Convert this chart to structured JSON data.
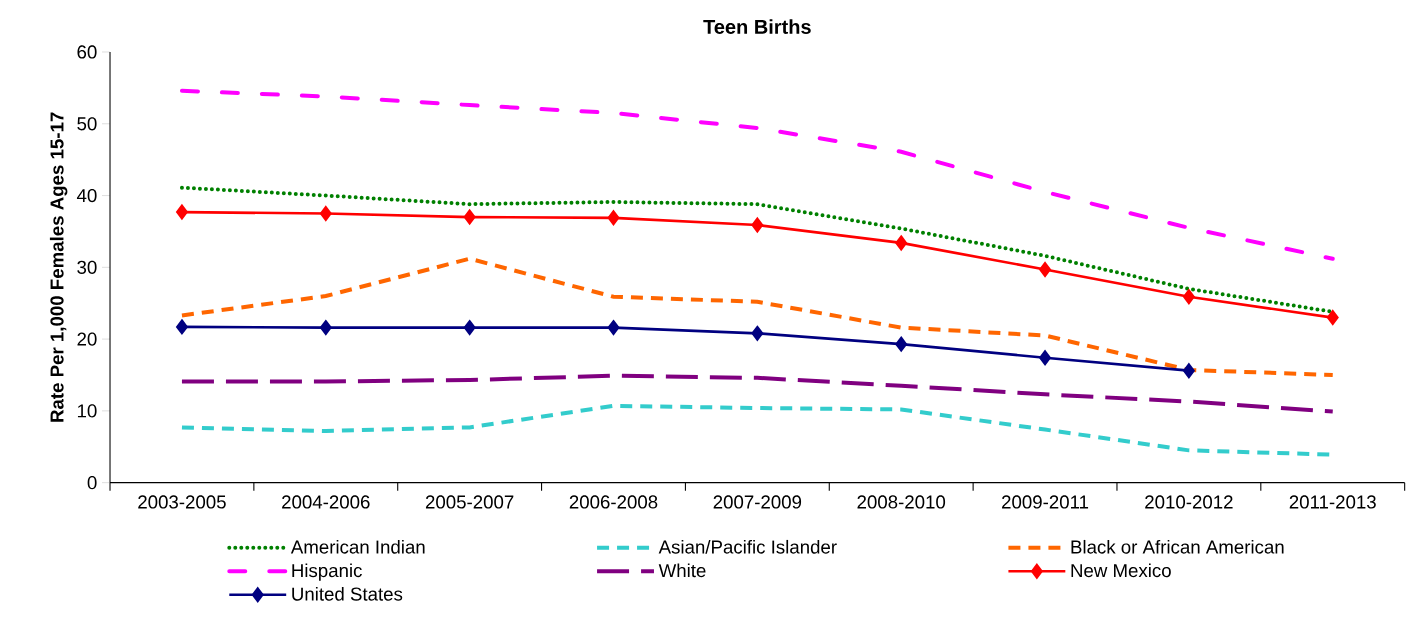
{
  "chart_data": {
    "type": "line",
    "title": "Teen Births",
    "ylabel": "Rate Per 1,000 Females Ages 15-17",
    "categories": [
      "2003-2005",
      "2004-2006",
      "2005-2007",
      "2006-2008",
      "2007-2009",
      "2008-2010",
      "2009-2011",
      "2010-2012",
      "2011-2013"
    ],
    "ylim": [
      0,
      60
    ],
    "yticks": [
      0,
      10,
      20,
      30,
      40,
      50,
      60
    ],
    "grid": false,
    "legend": "bottom",
    "series": [
      {
        "name": "American Indian",
        "color": "#008000",
        "line_style": "dotted",
        "marker": "none",
        "values": [
          41.1,
          40.0,
          38.8,
          39.1,
          38.8,
          35.4,
          31.6,
          27.0,
          23.8
        ]
      },
      {
        "name": "Asian/Pacific Islander",
        "color": "#33cccc",
        "line_style": "dashed",
        "marker": "none",
        "values": [
          7.7,
          7.2,
          7.7,
          10.7,
          10.4,
          10.2,
          7.4,
          4.5,
          3.9
        ]
      },
      {
        "name": "Black or African American",
        "color": "#ff6600",
        "line_style": "dashed",
        "marker": "none",
        "values": [
          23.3,
          26.0,
          31.2,
          25.9,
          25.2,
          21.6,
          20.5,
          15.7,
          15.0
        ]
      },
      {
        "name": "Hispanic",
        "color": "#ff00ff",
        "line_style": "dashdot",
        "marker": "none",
        "values": [
          54.6,
          53.8,
          52.6,
          51.5,
          49.4,
          46.1,
          40.5,
          35.5,
          31.2
        ]
      },
      {
        "name": "White",
        "color": "#800080",
        "line_style": "longdash",
        "marker": "none",
        "values": [
          14.1,
          14.1,
          14.3,
          14.9,
          14.6,
          13.5,
          12.3,
          11.3,
          9.9
        ]
      },
      {
        "name": "New Mexico",
        "color": "#ff0000",
        "line_style": "solid",
        "marker": "diamond",
        "values": [
          37.7,
          37.5,
          37.0,
          36.9,
          35.9,
          33.4,
          29.7,
          25.9,
          23.0
        ]
      },
      {
        "name": "United States",
        "color": "#000080",
        "line_style": "solid",
        "marker": "diamond",
        "values": [
          21.7,
          21.6,
          21.6,
          21.6,
          20.8,
          19.3,
          17.4,
          15.6,
          null
        ]
      }
    ]
  }
}
